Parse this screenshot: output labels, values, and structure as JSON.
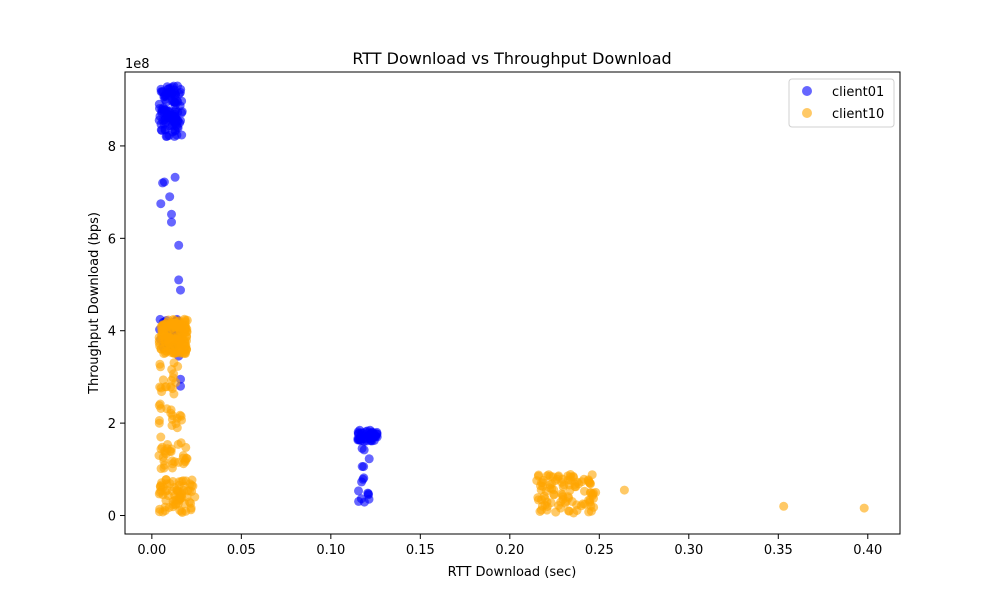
{
  "chart_data": {
    "type": "scatter",
    "title": "RTT Download vs Throughput Download",
    "xlabel": "RTT Download (sec)",
    "ylabel": "Throughput Download (bps)",
    "y_offset_label": "1e8",
    "xlim": [
      -0.015,
      0.418
    ],
    "ylim": [
      -0.4,
      9.6
    ],
    "x_ticks": [
      0.0,
      0.05,
      0.1,
      0.15,
      0.2,
      0.25,
      0.3,
      0.35,
      0.4
    ],
    "x_tick_labels": [
      "0.00",
      "0.05",
      "0.10",
      "0.15",
      "0.20",
      "0.25",
      "0.30",
      "0.35",
      "0.40"
    ],
    "y_ticks": [
      0,
      2,
      4,
      6,
      8
    ],
    "y_tick_labels": [
      "0",
      "2",
      "4",
      "6",
      "8"
    ],
    "grid": false,
    "legend_position": "top-right",
    "series": [
      {
        "name": "client01",
        "color": "#0000ff",
        "clusters": [
          {
            "x_min": 0.004,
            "x_max": 0.017,
            "y_min": 8.2,
            "y_max": 9.3,
            "count": 110
          },
          {
            "x_min": 0.004,
            "x_max": 0.018,
            "y_min": 3.6,
            "y_max": 4.25,
            "count": 40
          },
          {
            "x_min": 0.115,
            "x_max": 0.126,
            "y_min": 1.6,
            "y_max": 1.85,
            "count": 45
          },
          {
            "x_min": 0.115,
            "x_max": 0.122,
            "y_min": 0.25,
            "y_max": 1.5,
            "count": 14
          }
        ],
        "x": [
          0.006,
          0.007,
          0.013,
          0.01,
          0.005,
          0.011,
          0.011,
          0.015,
          0.015,
          0.016,
          0.016,
          0.016,
          0.015,
          0.121,
          0.121
        ],
        "y": [
          7.2,
          7.22,
          7.32,
          6.9,
          6.75,
          6.52,
          6.35,
          5.85,
          5.1,
          4.88,
          2.95,
          2.8,
          3.45,
          0.47,
          0.45
        ]
      },
      {
        "name": "client10",
        "color": "#ffa500",
        "clusters": [
          {
            "x_min": 0.004,
            "x_max": 0.02,
            "y_min": 3.5,
            "y_max": 4.25,
            "count": 150
          },
          {
            "x_min": 0.004,
            "x_max": 0.018,
            "y_min": 1.9,
            "y_max": 3.4,
            "count": 35
          },
          {
            "x_min": 0.004,
            "x_max": 0.02,
            "y_min": 1.0,
            "y_max": 1.6,
            "count": 30
          },
          {
            "x_min": 0.004,
            "x_max": 0.023,
            "y_min": 0.05,
            "y_max": 0.8,
            "count": 70
          },
          {
            "x_min": 0.215,
            "x_max": 0.247,
            "y_min": 0.6,
            "y_max": 0.9,
            "count": 45
          },
          {
            "x_min": 0.215,
            "x_max": 0.248,
            "y_min": 0.05,
            "y_max": 0.6,
            "count": 55
          }
        ],
        "x": [
          0.005,
          0.004,
          0.024,
          0.019,
          0.264,
          0.353,
          0.398,
          0.248
        ],
        "y": [
          1.7,
          1.3,
          0.4,
          0.75,
          0.55,
          0.2,
          0.16,
          0.5
        ]
      }
    ]
  }
}
